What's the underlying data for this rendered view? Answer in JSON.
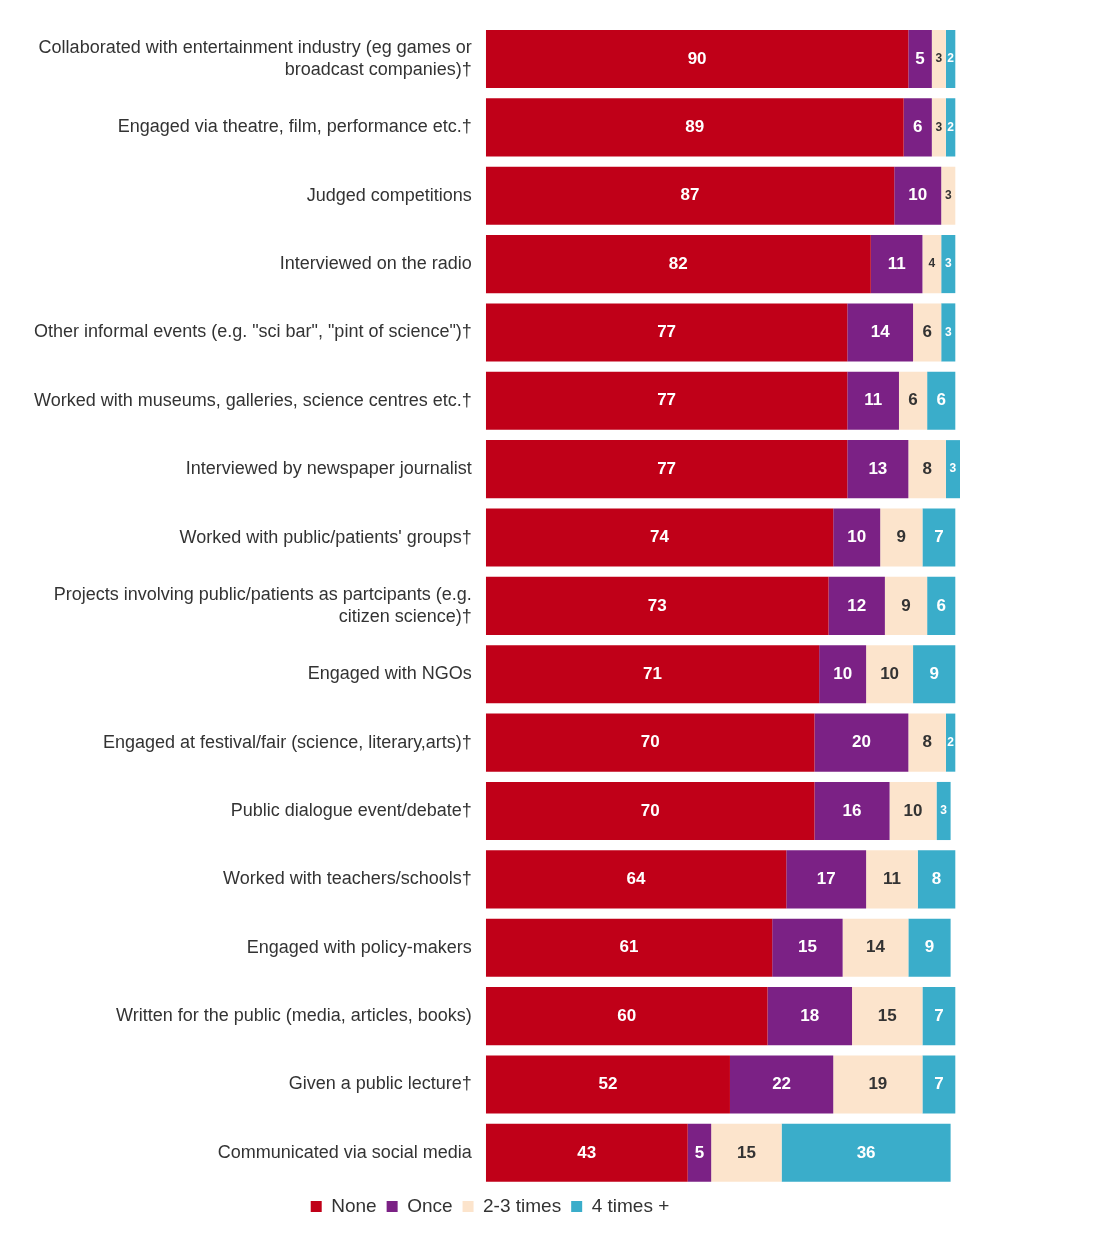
{
  "chart_data": {
    "type": "bar",
    "orientation": "horizontal",
    "stacked": true,
    "data_labels": true,
    "legend": "bottom",
    "tick_labels": "y",
    "grid": false,
    "xlim": [
      0,
      101
    ],
    "categories": [
      "Collaborated with entertainment industry (eg games or broadcast companies)†",
      "Engaged via theatre, film, performance etc.†",
      "Judged competitions",
      "Interviewed on the radio",
      "Other informal events (e.g. \"sci bar\", \"pint of science\")†",
      "Worked with museums, galleries, science centres etc.†",
      "Interviewed by newspaper journalist",
      "Worked with public/patients' groups†",
      "Projects involving public/patients as partcipants (e.g. citizen science)†",
      "Engaged with NGOs",
      "Engaged at festival/fair (science, literary,arts)†",
      "Public dialogue event/debate†",
      "Worked with teachers/schools†",
      "Engaged with policy-makers",
      "Written for the public (media, articles, books)",
      "Given a public lecture†",
      "Communicated via social media"
    ],
    "series": [
      {
        "name": "None",
        "color": "#c00018",
        "values": [
          90,
          89,
          87,
          82,
          77,
          77,
          77,
          74,
          73,
          71,
          70,
          70,
          64,
          61,
          60,
          52,
          43
        ]
      },
      {
        "name": "Once",
        "color": "#7b2185",
        "values": [
          5,
          6,
          10,
          11,
          14,
          11,
          13,
          10,
          12,
          10,
          20,
          16,
          17,
          15,
          18,
          22,
          5
        ]
      },
      {
        "name": "2-3 times",
        "color": "#fce4cc",
        "values": [
          3,
          3,
          3,
          4,
          6,
          6,
          8,
          9,
          9,
          10,
          8,
          10,
          11,
          14,
          15,
          19,
          15
        ]
      },
      {
        "name": "4 times +",
        "color": "#3aadca",
        "values": [
          2,
          2,
          null,
          3,
          3,
          6,
          3,
          7,
          6,
          9,
          2,
          3,
          8,
          9,
          7,
          7,
          36
        ]
      }
    ]
  }
}
